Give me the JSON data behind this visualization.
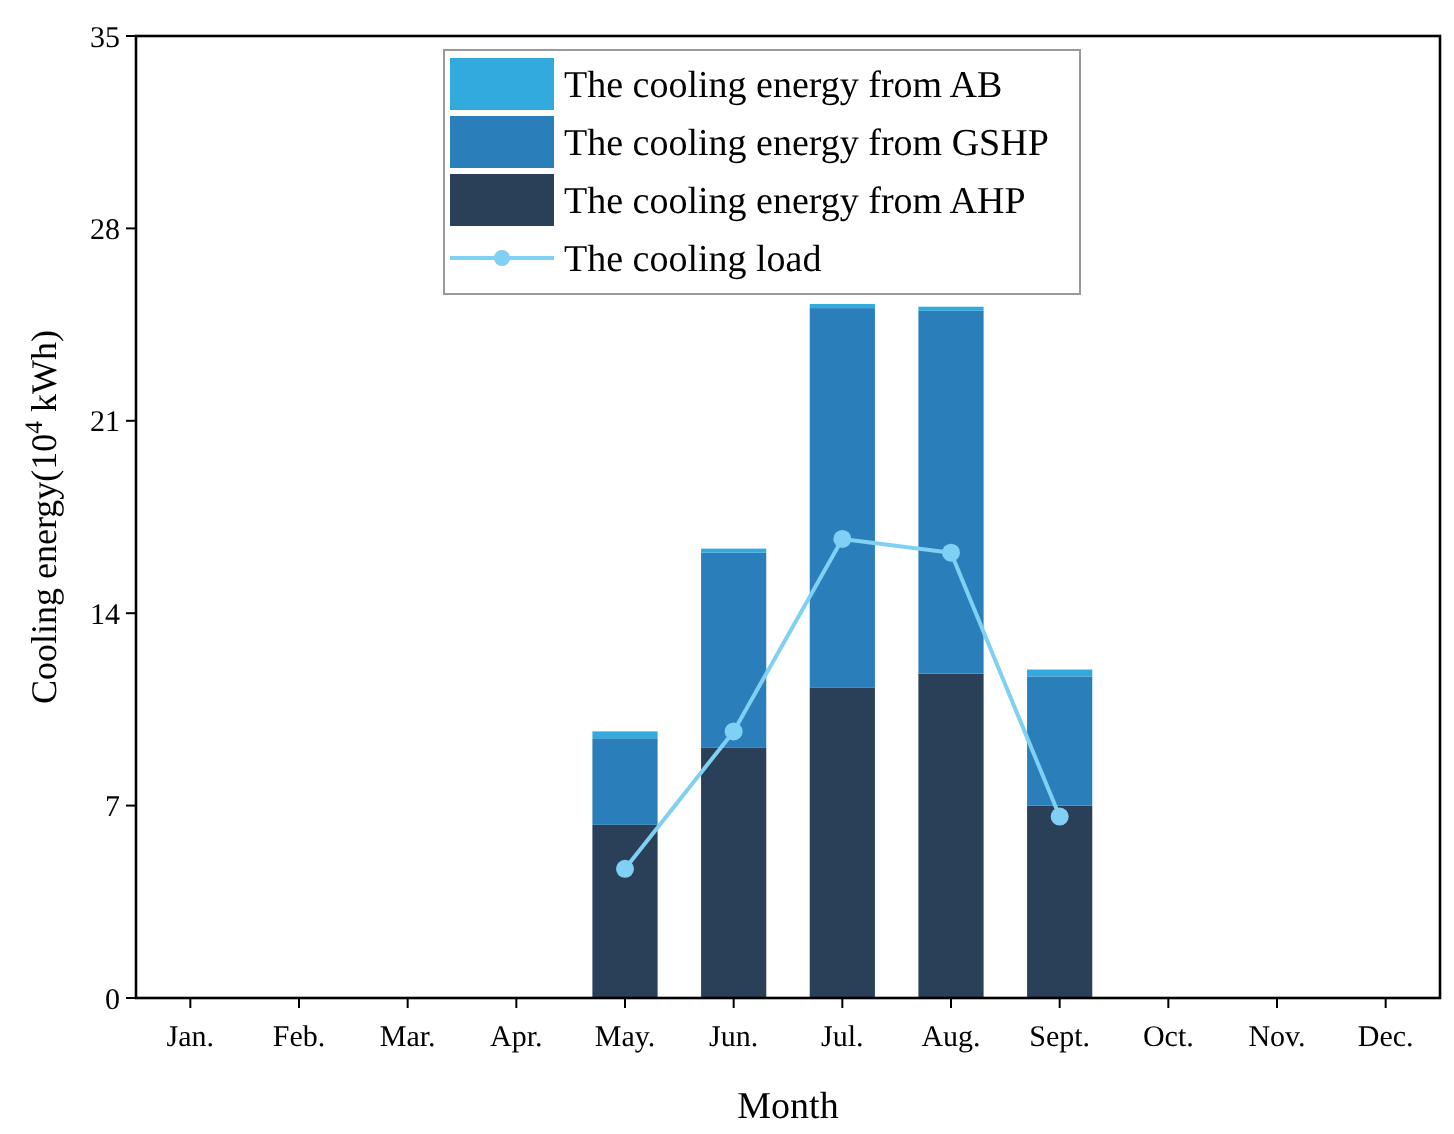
{
  "chart_data": {
    "type": "bar",
    "stacked": true,
    "xlabel": "Month",
    "ylabel": "Cooling energy(10$^{4}$ kWh)",
    "categories": [
      "Jan.",
      "Feb.",
      "Mar.",
      "Apr.",
      "May.",
      "Jun.",
      "Jul.",
      "Aug.",
      "Sept.",
      "Oct.",
      "Nov.",
      "Dec."
    ],
    "series": [
      {
        "name": "The cooling energy from AHP",
        "color": "#2a3f58",
        "values": [
          null,
          null,
          null,
          null,
          6.3,
          9.1,
          11.3,
          11.8,
          7.0,
          null,
          null,
          null
        ]
      },
      {
        "name": "The cooling energy from GSHP",
        "color": "#2a7fba",
        "values": [
          null,
          null,
          null,
          null,
          3.15,
          7.1,
          13.8,
          13.2,
          4.7,
          null,
          null,
          null
        ]
      },
      {
        "name": "The cooling energy from AB",
        "color": "#33aadd",
        "values": [
          null,
          null,
          null,
          null,
          0.25,
          0.15,
          0.15,
          0.15,
          0.25,
          null,
          null,
          null
        ]
      },
      {
        "name": "The cooling load",
        "type": "line",
        "color": "#7fd0f2",
        "marker": "circle",
        "values": [
          null,
          null,
          null,
          null,
          4.7,
          9.7,
          16.7,
          16.2,
          6.6,
          null,
          null,
          null
        ]
      }
    ],
    "ylim": [
      0,
      35
    ],
    "yticks": [
      0,
      7,
      14,
      21,
      28,
      35
    ],
    "legend": "top",
    "grid": false
  }
}
